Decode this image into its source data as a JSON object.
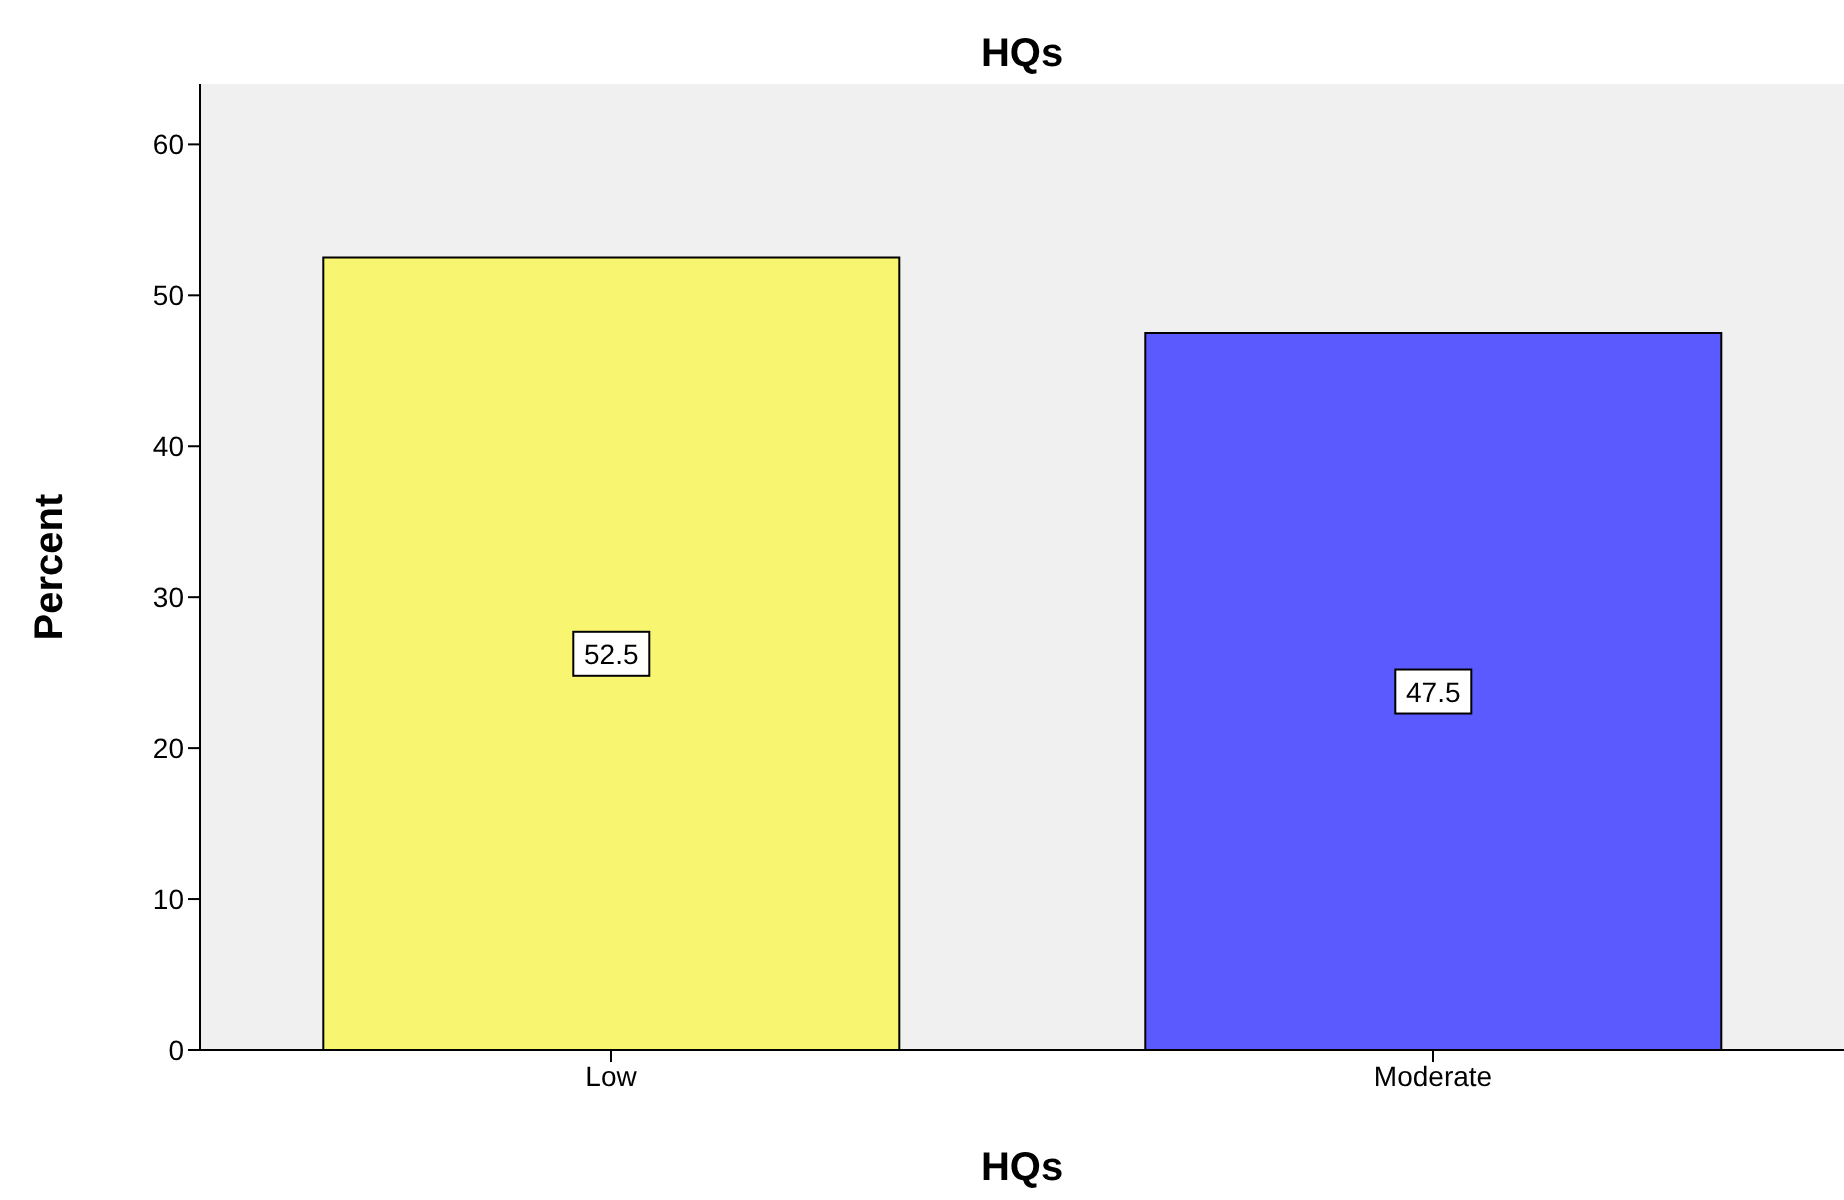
{
  "chart_data": {
    "type": "bar",
    "title": "HQs",
    "xlabel": "HQs",
    "ylabel": "Percent",
    "categories": [
      "Low",
      "Moderate"
    ],
    "values": [
      52.5,
      47.5
    ],
    "colors": [
      "#f8f570",
      "#5a5afe"
    ],
    "ylim": [
      0,
      64
    ],
    "yticks": [
      0,
      10,
      20,
      30,
      40,
      50,
      60
    ],
    "data_labels": true,
    "legend": false
  }
}
